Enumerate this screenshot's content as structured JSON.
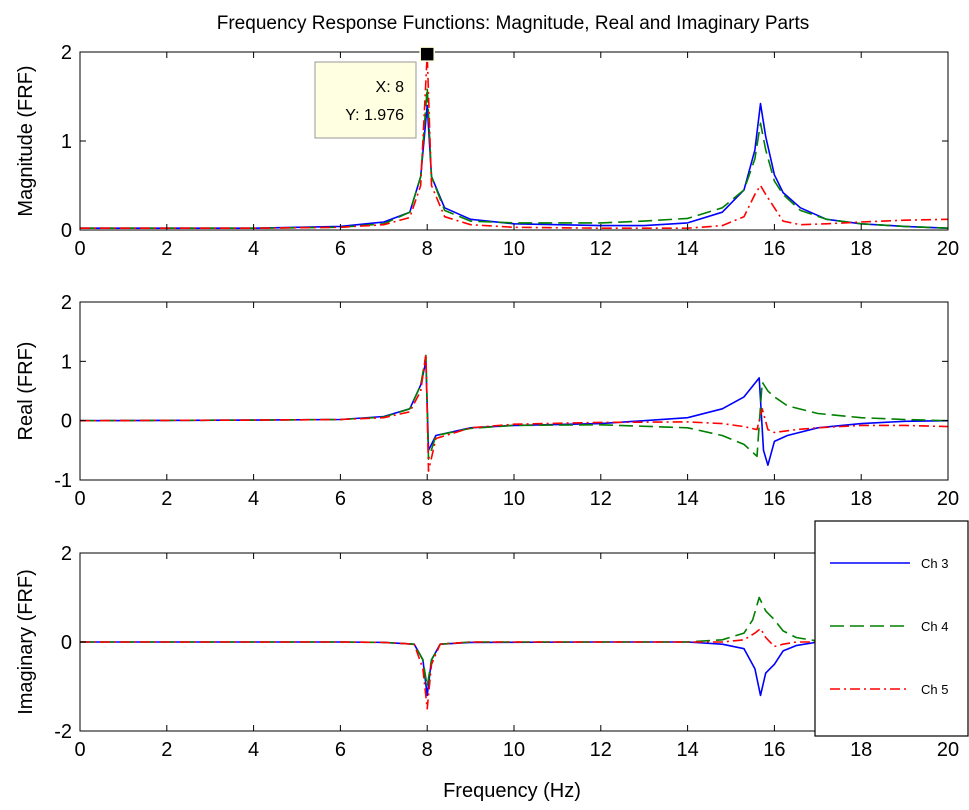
{
  "title": "Frequency Response Functions: Magnitude, Real and Imaginary Parts",
  "colors": {
    "ch3": "#0000ff",
    "ch4": "#008000",
    "ch5": "#ff0000",
    "tooltip_bg": "#ffffe1"
  },
  "legend": {
    "placement": "right of bottom axes, overlapping",
    "entries": [
      {
        "label": "Ch 3",
        "style": "solid",
        "color": "#0000ff"
      },
      {
        "label": "Ch 4",
        "style": "dashed",
        "color": "#008000"
      },
      {
        "label": "Ch 5",
        "style": "dash-dot",
        "color": "#ff0000"
      }
    ]
  },
  "datatip": {
    "x_text": "X: 8",
    "y_text": "Y: 1.976",
    "x": 8,
    "y": 1.976,
    "panel": 0
  },
  "chart_data": [
    {
      "type": "line",
      "ylabel": "Magnitude (FRF)",
      "xlim": [
        0,
        20
      ],
      "ylim": [
        0,
        2
      ],
      "x_ticks": [
        "0",
        "2",
        "4",
        "6",
        "8",
        "10",
        "12",
        "14",
        "16",
        "18",
        "20"
      ],
      "y_ticks": [
        "0",
        "1",
        "2"
      ],
      "series": [
        {
          "name": "Ch 3",
          "points": [
            [
              0,
              0.02
            ],
            [
              2,
              0.02
            ],
            [
              4,
              0.02
            ],
            [
              6,
              0.04
            ],
            [
              7,
              0.09
            ],
            [
              7.6,
              0.2
            ],
            [
              7.85,
              0.6
            ],
            [
              8,
              1.4
            ],
            [
              8.1,
              0.6
            ],
            [
              8.4,
              0.25
            ],
            [
              9,
              0.12
            ],
            [
              10,
              0.07
            ],
            [
              12,
              0.05
            ],
            [
              13,
              0.05
            ],
            [
              14,
              0.08
            ],
            [
              14.8,
              0.2
            ],
            [
              15.3,
              0.45
            ],
            [
              15.55,
              0.9
            ],
            [
              15.68,
              1.42
            ],
            [
              15.8,
              1.05
            ],
            [
              16,
              0.62
            ],
            [
              16.2,
              0.42
            ],
            [
              16.6,
              0.25
            ],
            [
              17.2,
              0.12
            ],
            [
              18,
              0.07
            ],
            [
              19,
              0.04
            ],
            [
              20,
              0.02
            ]
          ]
        },
        {
          "name": "Ch 4",
          "points": [
            [
              0,
              0.02
            ],
            [
              2,
              0.02
            ],
            [
              4,
              0.02
            ],
            [
              6,
              0.03
            ],
            [
              7,
              0.07
            ],
            [
              7.6,
              0.2
            ],
            [
              7.85,
              0.6
            ],
            [
              8,
              1.6
            ],
            [
              8.1,
              0.6
            ],
            [
              8.4,
              0.22
            ],
            [
              9,
              0.1
            ],
            [
              10,
              0.08
            ],
            [
              12,
              0.08
            ],
            [
              13,
              0.1
            ],
            [
              14,
              0.13
            ],
            [
              14.8,
              0.25
            ],
            [
              15.3,
              0.45
            ],
            [
              15.55,
              0.8
            ],
            [
              15.68,
              1.2
            ],
            [
              15.8,
              0.9
            ],
            [
              16,
              0.55
            ],
            [
              16.2,
              0.4
            ],
            [
              16.6,
              0.22
            ],
            [
              17.2,
              0.12
            ],
            [
              18,
              0.07
            ],
            [
              19,
              0.04
            ],
            [
              20,
              0.02
            ]
          ]
        },
        {
          "name": "Ch 5",
          "points": [
            [
              0,
              0.02
            ],
            [
              2,
              0.02
            ],
            [
              4,
              0.02
            ],
            [
              6,
              0.03
            ],
            [
              7,
              0.06
            ],
            [
              7.6,
              0.14
            ],
            [
              7.85,
              0.5
            ],
            [
              8,
              1.976
            ],
            [
              8.1,
              0.5
            ],
            [
              8.4,
              0.15
            ],
            [
              9,
              0.06
            ],
            [
              10,
              0.03
            ],
            [
              12,
              0.02
            ],
            [
              13,
              0.02
            ],
            [
              14,
              0.02
            ],
            [
              14.8,
              0.05
            ],
            [
              15.3,
              0.15
            ],
            [
              15.55,
              0.4
            ],
            [
              15.68,
              0.5
            ],
            [
              15.8,
              0.4
            ],
            [
              16,
              0.25
            ],
            [
              16.2,
              0.1
            ],
            [
              16.6,
              0.06
            ],
            [
              17.2,
              0.07
            ],
            [
              18,
              0.09
            ],
            [
              19,
              0.11
            ],
            [
              20,
              0.12
            ]
          ]
        }
      ]
    },
    {
      "type": "line",
      "ylabel": "Real (FRF)",
      "xlim": [
        0,
        20
      ],
      "ylim": [
        -1,
        2
      ],
      "x_ticks": [
        "0",
        "2",
        "4",
        "6",
        "8",
        "10",
        "12",
        "14",
        "16",
        "18",
        "20"
      ],
      "y_ticks": [
        "-1",
        "0",
        "1",
        "2"
      ],
      "series": [
        {
          "name": "Ch 3",
          "points": [
            [
              0,
              0
            ],
            [
              4,
              0.01
            ],
            [
              6,
              0.02
            ],
            [
              7,
              0.07
            ],
            [
              7.6,
              0.2
            ],
            [
              7.85,
              0.6
            ],
            [
              7.97,
              1.0
            ],
            [
              8.03,
              -0.5
            ],
            [
              8.2,
              -0.25
            ],
            [
              9,
              -0.12
            ],
            [
              10,
              -0.08
            ],
            [
              12,
              -0.05
            ],
            [
              14,
              0.05
            ],
            [
              14.8,
              0.2
            ],
            [
              15.3,
              0.4
            ],
            [
              15.65,
              0.72
            ],
            [
              15.75,
              -0.5
            ],
            [
              15.85,
              -0.75
            ],
            [
              16,
              -0.35
            ],
            [
              16.3,
              -0.25
            ],
            [
              17,
              -0.12
            ],
            [
              18,
              -0.05
            ],
            [
              19,
              -0.01
            ],
            [
              20,
              0.0
            ]
          ]
        },
        {
          "name": "Ch 4",
          "points": [
            [
              0,
              0
            ],
            [
              4,
              0.01
            ],
            [
              6,
              0.02
            ],
            [
              7,
              0.06
            ],
            [
              7.6,
              0.2
            ],
            [
              7.85,
              0.6
            ],
            [
              7.97,
              1.1
            ],
            [
              8.03,
              -0.65
            ],
            [
              8.2,
              -0.25
            ],
            [
              9,
              -0.13
            ],
            [
              10,
              -0.08
            ],
            [
              12,
              -0.07
            ],
            [
              14,
              -0.12
            ],
            [
              14.8,
              -0.25
            ],
            [
              15.3,
              -0.4
            ],
            [
              15.6,
              -0.6
            ],
            [
              15.72,
              0.65
            ],
            [
              15.85,
              0.5
            ],
            [
              16,
              0.4
            ],
            [
              16.3,
              0.25
            ],
            [
              17,
              0.12
            ],
            [
              18,
              0.05
            ],
            [
              19,
              0.02
            ],
            [
              20,
              0.0
            ]
          ]
        },
        {
          "name": "Ch 5",
          "points": [
            [
              0,
              0
            ],
            [
              4,
              0.01
            ],
            [
              6,
              0.02
            ],
            [
              7,
              0.05
            ],
            [
              7.6,
              0.15
            ],
            [
              7.85,
              0.5
            ],
            [
              7.97,
              1.12
            ],
            [
              8.03,
              -0.85
            ],
            [
              8.2,
              -0.3
            ],
            [
              9,
              -0.12
            ],
            [
              10,
              -0.06
            ],
            [
              12,
              -0.03
            ],
            [
              14,
              -0.02
            ],
            [
              14.8,
              -0.05
            ],
            [
              15.3,
              -0.1
            ],
            [
              15.6,
              -0.15
            ],
            [
              15.72,
              0.2
            ],
            [
              15.85,
              -0.15
            ],
            [
              16,
              -0.2
            ],
            [
              16.5,
              -0.15
            ],
            [
              17,
              -0.12
            ],
            [
              18,
              -0.08
            ],
            [
              19,
              -0.08
            ],
            [
              20,
              -0.1
            ]
          ]
        }
      ]
    },
    {
      "type": "line",
      "ylabel": "Imaginary (FRF)",
      "xlabel": "Frequency (Hz)",
      "xlim": [
        0,
        20
      ],
      "ylim": [
        -2,
        2
      ],
      "x_ticks": [
        "0",
        "2",
        "4",
        "6",
        "8",
        "10",
        "12",
        "14",
        "16",
        "18",
        "20"
      ],
      "y_ticks": [
        "-2",
        "0",
        "2"
      ],
      "series": [
        {
          "name": "Ch 3",
          "points": [
            [
              0,
              0
            ],
            [
              6,
              0
            ],
            [
              7,
              -0.01
            ],
            [
              7.7,
              -0.05
            ],
            [
              7.9,
              -0.4
            ],
            [
              8,
              -1.2
            ],
            [
              8.1,
              -0.4
            ],
            [
              8.3,
              -0.05
            ],
            [
              9,
              -0.01
            ],
            [
              12,
              0
            ],
            [
              14,
              0
            ],
            [
              14.8,
              -0.05
            ],
            [
              15.3,
              -0.15
            ],
            [
              15.55,
              -0.6
            ],
            [
              15.68,
              -1.2
            ],
            [
              15.8,
              -0.7
            ],
            [
              16,
              -0.5
            ],
            [
              16.2,
              -0.2
            ],
            [
              16.5,
              -0.08
            ],
            [
              17,
              0
            ],
            [
              20,
              0
            ]
          ]
        },
        {
          "name": "Ch 4",
          "points": [
            [
              0,
              0
            ],
            [
              6,
              0
            ],
            [
              7,
              -0.01
            ],
            [
              7.7,
              -0.05
            ],
            [
              7.9,
              -0.4
            ],
            [
              8,
              -1.0
            ],
            [
              8.1,
              -0.4
            ],
            [
              8.3,
              -0.05
            ],
            [
              9,
              0
            ],
            [
              12,
              0
            ],
            [
              14,
              0
            ],
            [
              14.8,
              0.05
            ],
            [
              15.3,
              0.2
            ],
            [
              15.5,
              0.5
            ],
            [
              15.65,
              1.0
            ],
            [
              15.8,
              0.7
            ],
            [
              16,
              0.5
            ],
            [
              16.2,
              0.25
            ],
            [
              16.5,
              0.1
            ],
            [
              17,
              0.02
            ],
            [
              20,
              0
            ]
          ]
        },
        {
          "name": "Ch 5",
          "points": [
            [
              0,
              0
            ],
            [
              6,
              0
            ],
            [
              7,
              -0.01
            ],
            [
              7.7,
              -0.05
            ],
            [
              7.9,
              -0.6
            ],
            [
              8,
              -1.5
            ],
            [
              8.1,
              -0.5
            ],
            [
              8.3,
              -0.05
            ],
            [
              9,
              0
            ],
            [
              12,
              0
            ],
            [
              14,
              0
            ],
            [
              14.8,
              0
            ],
            [
              15.3,
              0.05
            ],
            [
              15.55,
              0.2
            ],
            [
              15.68,
              0.3
            ],
            [
              15.8,
              0.1
            ],
            [
              16,
              -0.1
            ],
            [
              16.2,
              -0.05
            ],
            [
              16.5,
              0
            ],
            [
              17,
              0
            ],
            [
              20,
              0
            ]
          ]
        }
      ]
    }
  ]
}
